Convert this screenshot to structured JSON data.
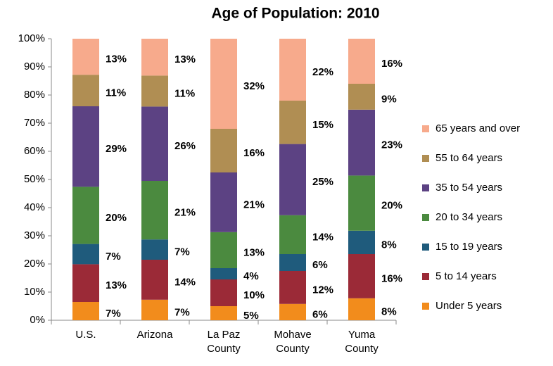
{
  "chart_data": {
    "type": "bar",
    "stacked": true,
    "title": "Age of Population: 2010",
    "categories": [
      "U.S.",
      "Arizona",
      "La Paz County",
      "Mohave County",
      "Yuma County"
    ],
    "series": [
      {
        "name": "Under 5 years",
        "color": "#f28c1c",
        "values": [
          6.5,
          7.3,
          5.0,
          5.8,
          7.8
        ],
        "value_labels": [
          "7%",
          "7%",
          "5%",
          "6%",
          "8%"
        ]
      },
      {
        "name": "5 to 14 years",
        "color": "#9b2a37",
        "values": [
          13.4,
          14.2,
          9.5,
          11.7,
          15.7
        ],
        "value_labels": [
          "13%",
          "14%",
          "10%",
          "12%",
          "16%"
        ]
      },
      {
        "name": "15 to 19 years",
        "color": "#1f5b7c",
        "values": [
          7.2,
          7.2,
          4.0,
          6.0,
          8.3
        ],
        "value_labels": [
          "7%",
          "7%",
          "4%",
          "6%",
          "8%"
        ]
      },
      {
        "name": "20 to 34 years",
        "color": "#4b8a3f",
        "values": [
          20.3,
          20.8,
          12.8,
          13.8,
          19.6
        ],
        "value_labels": [
          "20%",
          "21%",
          "13%",
          "14%",
          "20%"
        ]
      },
      {
        "name": "35 to 54 years",
        "color": "#5c4283",
        "values": [
          28.6,
          26.4,
          21.2,
          25.3,
          23.4
        ],
        "value_labels": [
          "29%",
          "26%",
          "21%",
          "25%",
          "23%"
        ]
      },
      {
        "name": "55 to 64 years",
        "color": "#b08e53",
        "values": [
          11.2,
          11.0,
          15.5,
          15.4,
          9.2
        ],
        "value_labels": [
          "11%",
          "11%",
          "16%",
          "15%",
          "9%"
        ]
      },
      {
        "name": "65 years and over",
        "color": "#f7aa8c",
        "values": [
          12.8,
          13.1,
          32.0,
          22.0,
          16.0
        ],
        "value_labels": [
          "13%",
          "13%",
          "32%",
          "22%",
          "16%"
        ]
      }
    ],
    "ylim": [
      0,
      100
    ],
    "yticks": [
      {
        "value": 0,
        "label": "0%"
      },
      {
        "value": 10,
        "label": "10%"
      },
      {
        "value": 20,
        "label": "20%"
      },
      {
        "value": 30,
        "label": "30%"
      },
      {
        "value": 40,
        "label": "40%"
      },
      {
        "value": 50,
        "label": "50%"
      },
      {
        "value": 60,
        "label": "60%"
      },
      {
        "value": 70,
        "label": "70%"
      },
      {
        "value": 80,
        "label": "80%"
      },
      {
        "value": 90,
        "label": "90%"
      },
      {
        "value": 100,
        "label": "100%"
      }
    ],
    "grid": false,
    "legend": "right"
  }
}
